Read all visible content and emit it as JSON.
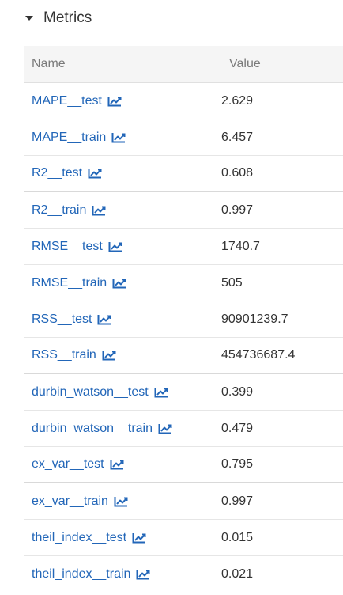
{
  "section": {
    "title": "Metrics",
    "collapsed": false
  },
  "table": {
    "headers": {
      "name": "Name",
      "value": "Value"
    },
    "rows": [
      {
        "name": "MAPE__test",
        "value": "2.629",
        "icon": "line-chart-icon"
      },
      {
        "name": "MAPE__train",
        "value": "6.457",
        "icon": "line-chart-icon"
      },
      {
        "name": "R2__test",
        "value": "0.608",
        "icon": "line-chart-icon"
      },
      {
        "name": "R2__train",
        "value": "0.997",
        "icon": "line-chart-icon"
      },
      {
        "name": "RMSE__test",
        "value": "1740.7",
        "icon": "line-chart-icon"
      },
      {
        "name": "RMSE__train",
        "value": "505",
        "icon": "line-chart-icon"
      },
      {
        "name": "RSS__test",
        "value": "90901239.7",
        "icon": "line-chart-icon"
      },
      {
        "name": "RSS__train",
        "value": "454736687.4",
        "icon": "line-chart-icon"
      },
      {
        "name": "durbin_watson__test",
        "value": "0.399",
        "icon": "line-chart-icon"
      },
      {
        "name": "durbin_watson__train",
        "value": "0.479",
        "icon": "line-chart-icon"
      },
      {
        "name": "ex_var__test",
        "value": "0.795",
        "icon": "line-chart-icon"
      },
      {
        "name": "ex_var__train",
        "value": "0.997",
        "icon": "line-chart-icon"
      },
      {
        "name": "theil_index__test",
        "value": "0.015",
        "icon": "line-chart-icon"
      },
      {
        "name": "theil_index__train",
        "value": "0.021",
        "icon": "line-chart-icon"
      }
    ]
  },
  "colors": {
    "link": "#2266b8",
    "header_bg": "#f5f5f5",
    "header_text": "#7a7a7a",
    "text": "#333333"
  }
}
